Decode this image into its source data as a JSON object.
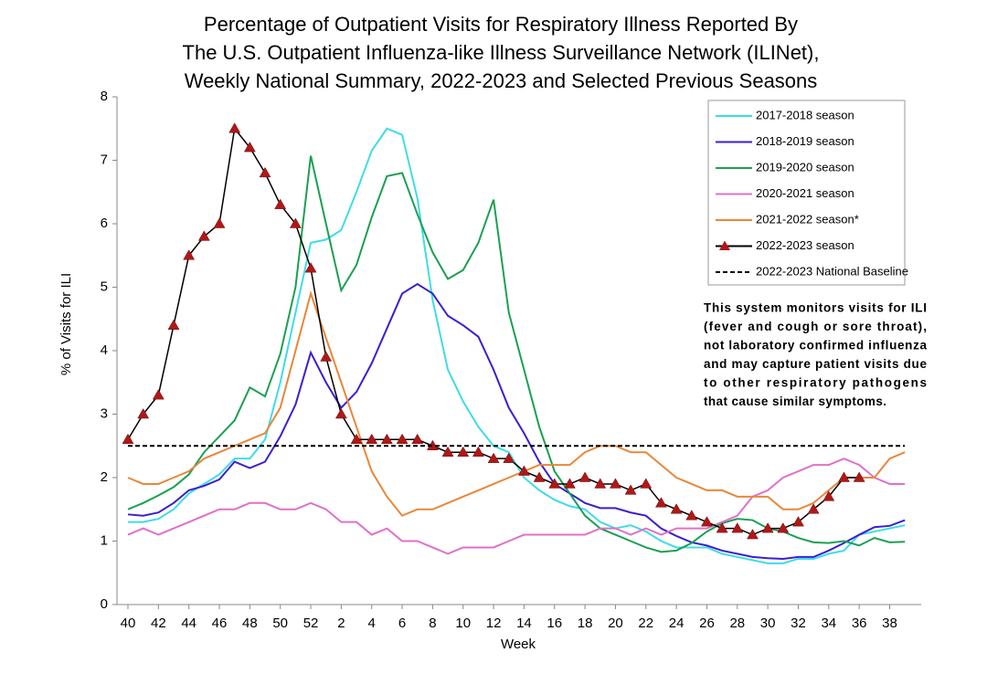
{
  "chart_data": {
    "type": "line",
    "title": [
      "Percentage of Outpatient Visits for Respiratory Illness Reported By",
      "The U.S. Outpatient Influenza-like Illness Surveillance Network (ILINet),",
      "Weekly National Summary, 2022-2023 and Selected Previous Seasons"
    ],
    "x_label": "Week",
    "y_label": "% of Visits for ILI",
    "categories": [
      40,
      null,
      42,
      null,
      44,
      null,
      46,
      null,
      48,
      null,
      50,
      null,
      52,
      null,
      2,
      null,
      4,
      null,
      6,
      null,
      8,
      null,
      10,
      null,
      12,
      null,
      14,
      null,
      16,
      null,
      18,
      null,
      20,
      null,
      22,
      null,
      24,
      null,
      26,
      null,
      28,
      null,
      30,
      null,
      32,
      null,
      34,
      null,
      36,
      null,
      38,
      null
    ],
    "ylim": [
      0,
      8
    ],
    "yticks": [
      0,
      1,
      2,
      3,
      4,
      5,
      6,
      7,
      8
    ],
    "series": [
      {
        "name": "2017-2018 season",
        "color": "#3fdce6",
        "values": [
          1.3,
          1.3,
          1.35,
          1.5,
          1.75,
          1.9,
          2.05,
          2.3,
          2.3,
          2.6,
          3.5,
          4.6,
          5.7,
          5.75,
          5.9,
          6.5,
          7.15,
          7.5,
          7.4,
          6.4,
          4.8,
          3.7,
          3.2,
          2.8,
          2.5,
          2.4,
          2.0,
          1.8,
          1.65,
          1.55,
          1.5,
          1.3,
          1.2,
          1.25,
          1.15,
          1.0,
          0.9,
          0.9,
          0.9,
          0.8,
          0.75,
          0.7,
          0.65,
          0.65,
          0.72,
          0.72,
          0.8,
          0.85,
          1.1,
          1.15,
          1.2,
          1.25
        ]
      },
      {
        "name": "2018-2019 season",
        "color": "#3a1fd0",
        "values": [
          1.42,
          1.4,
          1.45,
          1.6,
          1.8,
          1.87,
          1.97,
          2.25,
          2.15,
          2.25,
          2.65,
          3.15,
          3.97,
          3.5,
          3.1,
          3.35,
          3.8,
          4.35,
          4.9,
          5.05,
          4.9,
          4.55,
          4.4,
          4.22,
          3.7,
          3.1,
          2.7,
          2.25,
          1.9,
          1.75,
          1.6,
          1.52,
          1.52,
          1.45,
          1.4,
          1.2,
          1.08,
          0.98,
          0.93,
          0.85,
          0.8,
          0.75,
          0.73,
          0.72,
          0.75,
          0.75,
          0.85,
          0.97,
          1.1,
          1.22,
          1.24,
          1.33
        ]
      },
      {
        "name": "2019-2020 season",
        "color": "#1aa052",
        "values": [
          1.5,
          1.6,
          1.72,
          1.85,
          2.05,
          2.4,
          2.65,
          2.9,
          3.42,
          3.28,
          3.95,
          5.0,
          7.07,
          6.0,
          4.95,
          5.35,
          6.1,
          6.75,
          6.8,
          6.15,
          5.55,
          5.13,
          5.27,
          5.7,
          6.38,
          4.6,
          3.7,
          2.8,
          2.1,
          1.75,
          1.4,
          1.2,
          1.1,
          1.0,
          0.9,
          0.83,
          0.85,
          0.97,
          1.15,
          1.28,
          1.35,
          1.33,
          1.2,
          1.15,
          1.05,
          0.98,
          0.97,
          1.0,
          0.93,
          1.05,
          0.98,
          0.99
        ]
      },
      {
        "name": "2020-2021 season",
        "color": "#e070c8",
        "values": [
          1.1,
          1.2,
          1.1,
          1.2,
          1.3,
          1.4,
          1.5,
          1.5,
          1.6,
          1.6,
          1.5,
          1.5,
          1.6,
          1.5,
          1.3,
          1.3,
          1.1,
          1.2,
          1.0,
          1.0,
          0.9,
          0.8,
          0.9,
          0.9,
          0.9,
          1.0,
          1.1,
          1.1,
          1.1,
          1.1,
          1.1,
          1.2,
          1.2,
          1.1,
          1.2,
          1.1,
          1.2,
          1.2,
          1.2,
          1.3,
          1.4,
          1.7,
          1.8,
          2.0,
          2.1,
          2.2,
          2.2,
          2.3,
          2.2,
          2.0,
          1.9,
          1.9
        ]
      },
      {
        "name": "2021-2022 season*",
        "color": "#e8873a",
        "values": [
          2.0,
          1.9,
          1.9,
          2.0,
          2.1,
          2.3,
          2.4,
          2.5,
          2.6,
          2.7,
          3.1,
          4.0,
          4.9,
          4.2,
          3.5,
          2.8,
          2.1,
          1.7,
          1.4,
          1.5,
          1.5,
          1.6,
          1.7,
          1.8,
          1.9,
          2.0,
          2.1,
          2.2,
          2.2,
          2.2,
          2.4,
          2.5,
          2.5,
          2.4,
          2.4,
          2.2,
          2.0,
          1.9,
          1.8,
          1.8,
          1.7,
          1.7,
          1.7,
          1.5,
          1.5,
          1.6,
          1.8,
          2.0,
          2.0,
          2.0,
          2.3,
          2.4
        ]
      },
      {
        "name": "2022-2023 season",
        "color": "#000000",
        "marker": "triangle",
        "marker_color": "#b01818",
        "values": [
          2.6,
          3.0,
          3.3,
          4.4,
          5.5,
          5.8,
          6.0,
          7.5,
          7.2,
          6.8,
          6.3,
          6.0,
          5.3,
          3.9,
          3.0,
          2.6,
          2.6,
          2.6,
          2.6,
          2.6,
          2.5,
          2.4,
          2.4,
          2.4,
          2.3,
          2.3,
          2.1,
          2.0,
          1.9,
          1.9,
          2.0,
          1.9,
          1.9,
          1.8,
          1.9,
          1.6,
          1.5,
          1.4,
          1.3,
          1.2,
          1.2,
          1.1,
          1.2,
          1.2,
          1.3,
          1.5,
          1.7,
          2.0,
          2.0,
          null,
          null,
          null
        ]
      }
    ],
    "baseline": {
      "name": "2022-2023 National Baseline",
      "value": 2.5,
      "color": "#000000"
    },
    "annotation": [
      "This system monitors visits for ILI",
      "(fever and cough or sore throat),",
      "not laboratory confirmed influenza",
      "and may capture patient visits due",
      "to other respiratory pathogens",
      "that cause similar symptoms."
    ]
  }
}
